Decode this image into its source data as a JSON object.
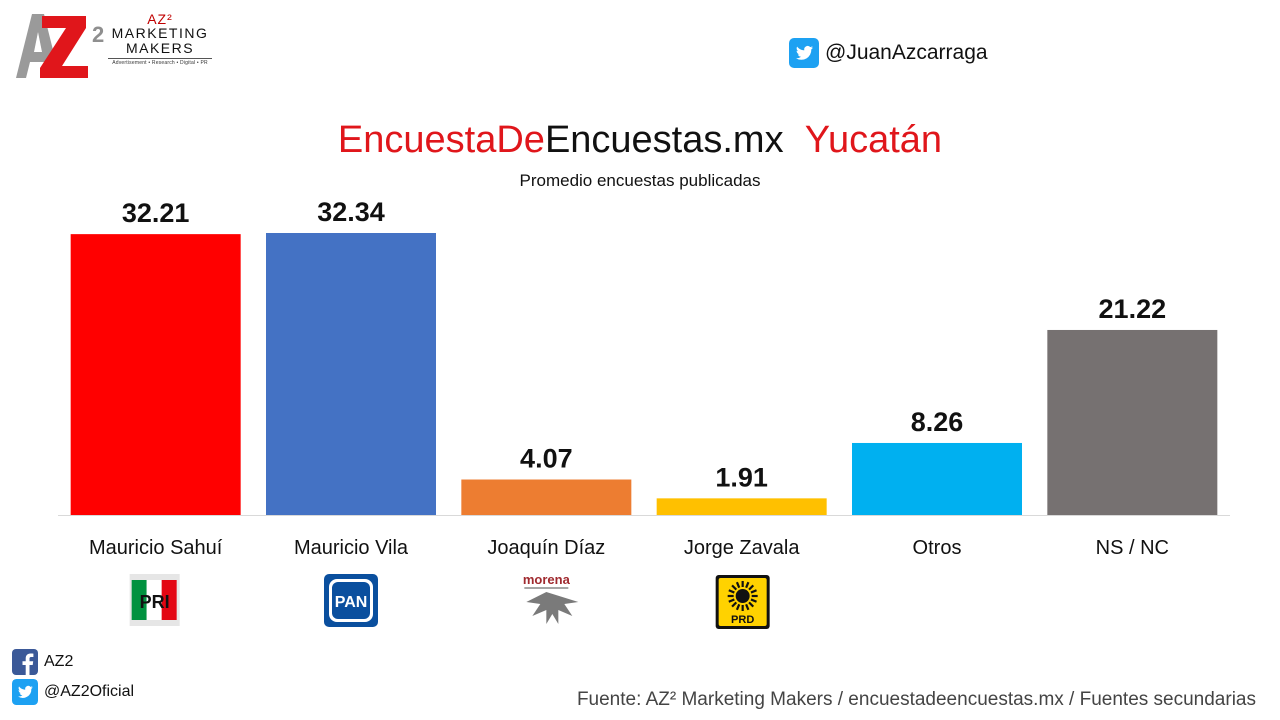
{
  "brand": {
    "az": "AZ²",
    "line1": "MARKETING",
    "line2": "MAKERS",
    "tagline": "Advertisement • Research • Digital • PR"
  },
  "twitter_top": "@JuanAzcarraga",
  "title": {
    "part1": "EncuestaDe",
    "part2": "Encuestas.mx",
    "part3": "Yucatán"
  },
  "subtitle": "Promedio encuestas publicadas",
  "chart_data": {
    "type": "bar",
    "categories": [
      "Mauricio Sahuí",
      "Mauricio Vila",
      "Joaquín Díaz",
      "Jorge Zavala",
      "Otros",
      "NS / NC"
    ],
    "values": [
      32.21,
      32.34,
      4.07,
      1.91,
      8.26,
      21.22
    ],
    "colors": [
      "#ff0000",
      "#4472c4",
      "#ed7d31",
      "#ffc000",
      "#00b0f0",
      "#767171"
    ],
    "party_logos": [
      "PRI",
      "PAN",
      "morena",
      "PRD",
      "",
      ""
    ],
    "ylim": [
      0,
      32.34
    ],
    "grid": false
  },
  "social": {
    "facebook": "AZ2",
    "twitter": "@AZ2Oficial"
  },
  "source": "Fuente: AZ² Marketing Makers / encuestadeencuestas.mx / Fuentes secundarias"
}
